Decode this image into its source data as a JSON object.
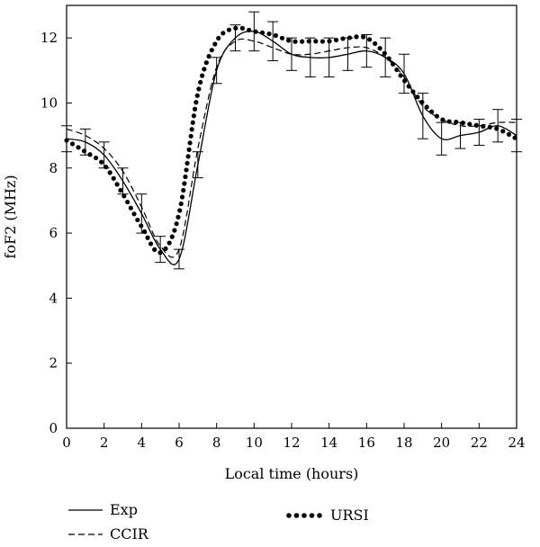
{
  "chart_data": {
    "type": "line",
    "title": "",
    "xlabel": "Local time (hours)",
    "ylabel": "foF2 (MHz)",
    "xlim": [
      0,
      24
    ],
    "ylim": [
      0,
      13
    ],
    "xticks": [
      "0",
      "2",
      "4",
      "6",
      "8",
      "10",
      "12",
      "14",
      "16",
      "18",
      "20",
      "22",
      "24"
    ],
    "yticks": [
      "0",
      "2",
      "4",
      "6",
      "8",
      "10",
      "12"
    ],
    "grid": false,
    "legend_position": "bottom",
    "series": [
      {
        "name": "Exp",
        "style": "solid",
        "x": [
          0,
          1,
          2,
          3,
          4,
          5,
          6,
          7,
          8,
          9,
          10,
          11,
          12,
          13,
          14,
          15,
          16,
          17,
          18,
          19,
          20,
          21,
          22,
          23,
          24
        ],
        "y": [
          8.9,
          8.8,
          8.4,
          7.6,
          6.6,
          5.5,
          5.2,
          8.1,
          11.0,
          12.0,
          12.2,
          11.9,
          11.5,
          11.4,
          11.4,
          11.5,
          11.6,
          11.4,
          10.9,
          9.6,
          8.9,
          9.0,
          9.1,
          9.3,
          9.0
        ],
        "error": [
          0.4,
          0.4,
          0.4,
          0.4,
          0.6,
          0.4,
          0.3,
          0.4,
          0.4,
          0.4,
          0.6,
          0.6,
          0.5,
          0.6,
          0.6,
          0.5,
          0.5,
          0.6,
          0.6,
          0.7,
          0.5,
          0.4,
          0.4,
          0.5,
          0.5
        ]
      },
      {
        "name": "CCIR",
        "style": "dashed",
        "x": [
          0,
          1,
          2,
          3,
          4,
          5,
          6,
          7,
          8,
          9,
          10,
          11,
          12,
          13,
          14,
          15,
          16,
          17,
          18,
          19,
          20,
          21,
          22,
          23,
          24
        ],
        "y": [
          9.2,
          9.0,
          8.6,
          7.9,
          6.8,
          5.6,
          5.5,
          8.6,
          11.1,
          11.9,
          11.9,
          11.7,
          11.5,
          11.5,
          11.6,
          11.7,
          11.7,
          11.4,
          10.8,
          9.9,
          9.5,
          9.3,
          9.3,
          9.4,
          9.4
        ]
      },
      {
        "name": "URSI",
        "style": "dotted",
        "x": [
          0,
          1,
          2,
          3,
          4,
          5,
          6,
          7,
          8,
          9,
          10,
          11,
          12,
          13,
          14,
          15,
          16,
          17,
          18,
          19,
          20,
          21,
          22,
          23,
          24
        ],
        "y": [
          8.85,
          8.5,
          8.1,
          7.2,
          6.2,
          5.4,
          6.6,
          10.3,
          11.9,
          12.3,
          12.2,
          12.1,
          11.9,
          11.9,
          11.9,
          12.0,
          12.0,
          11.5,
          10.7,
          10.0,
          9.5,
          9.4,
          9.3,
          9.2,
          8.9
        ]
      }
    ],
    "colors": {
      "line": "#000000",
      "background": "#ffffff"
    }
  }
}
